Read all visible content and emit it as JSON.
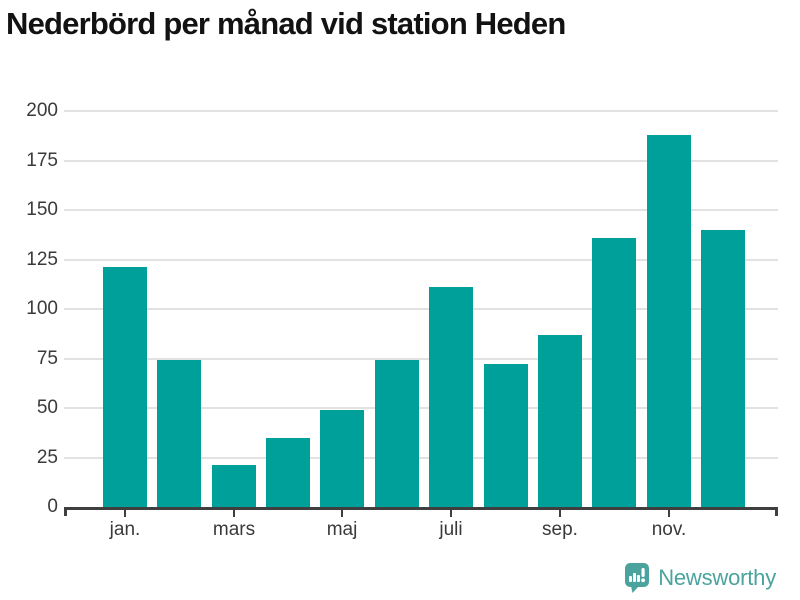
{
  "title": "Nederbörd per månad vid station Heden",
  "chart_data": {
    "type": "bar",
    "categories": [
      "jan.",
      "",
      "mars",
      "",
      "maj",
      "",
      "juli",
      "",
      "sep.",
      "",
      "nov.",
      ""
    ],
    "values": [
      121,
      74,
      21,
      35,
      49,
      74,
      111,
      72,
      87,
      136,
      188,
      140
    ],
    "title": "Nederbörd per månad vid station Heden",
    "xlabel": "",
    "ylabel": "",
    "ylim": [
      0,
      200
    ],
    "yticks": [
      0,
      25,
      50,
      75,
      100,
      125,
      150,
      175,
      200
    ],
    "grid": "horizontal",
    "legend": "none"
  },
  "colors": {
    "bar": "#00a09a",
    "grid": "#e2e2e2",
    "axis": "#3f3f3f",
    "tick_text": "#3a3a3a",
    "title_text": "#121212",
    "brand": "#4aa39d"
  },
  "branding": {
    "name": "Newsworthy",
    "icon": "newsworthy-chart-bubble-icon"
  }
}
